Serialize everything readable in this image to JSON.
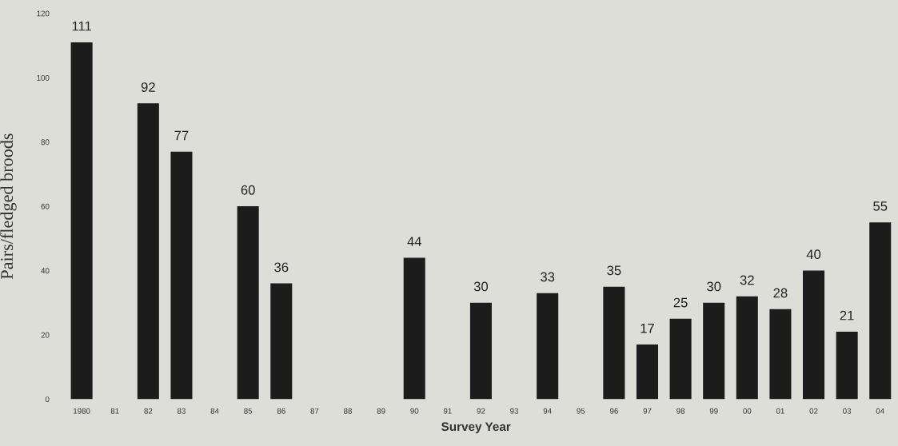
{
  "chart_data": {
    "type": "bar",
    "xlabel": "Survey Year",
    "ylabel": "Pairs/fledged broods",
    "categories": [
      "1980",
      "81",
      "82",
      "83",
      "84",
      "85",
      "86",
      "87",
      "88",
      "89",
      "90",
      "91",
      "92",
      "93",
      "94",
      "95",
      "96",
      "97",
      "98",
      "99",
      "00",
      "01",
      "02",
      "03",
      "04"
    ],
    "values": [
      111,
      null,
      92,
      77,
      null,
      60,
      36,
      null,
      null,
      null,
      44,
      null,
      30,
      null,
      33,
      null,
      35,
      17,
      25,
      30,
      32,
      28,
      40,
      21,
      55
    ],
    "color": "#1c1c1c",
    "ylim": [
      0,
      120
    ],
    "yticks": [
      0,
      20,
      40,
      60,
      80,
      100,
      120
    ],
    "grid": false,
    "data_labels": true
  }
}
